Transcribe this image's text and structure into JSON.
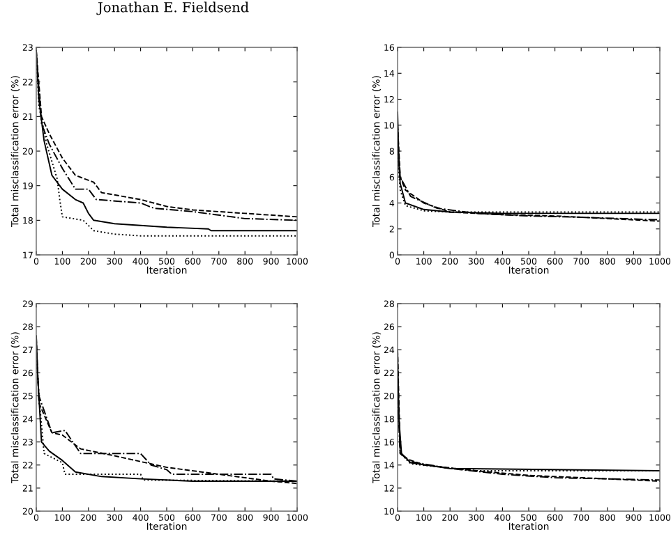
{
  "chart_data": [
    {
      "type": "line",
      "annotations": [
        "Jonathan E. Fieldsend"
      ],
      "xlabel": "Iteration",
      "ylabel": "Total misclassification error (%)",
      "xlim": [
        0,
        1000
      ],
      "xticks": [
        0,
        100,
        200,
        300,
        400,
        500,
        600,
        700,
        800,
        900,
        1000
      ],
      "ylim": [
        17,
        23
      ],
      "yticks": [
        17,
        18,
        19,
        20,
        21,
        22,
        23
      ],
      "series": [
        {
          "color": "#000000",
          "line_style": "solid",
          "x": [
            0,
            10,
            30,
            60,
            100,
            150,
            180,
            200,
            220,
            300,
            400,
            500,
            660,
            670,
            1000
          ],
          "values": [
            22.9,
            21.5,
            20.3,
            19.3,
            18.9,
            18.6,
            18.5,
            18.2,
            18.0,
            17.9,
            17.85,
            17.8,
            17.75,
            17.7,
            17.7
          ]
        },
        {
          "color": "#000000",
          "line_style": "dotted",
          "x": [
            0,
            10,
            40,
            80,
            90,
            100,
            180,
            220,
            300,
            400,
            1000
          ],
          "values": [
            22.8,
            21.3,
            20.2,
            19.2,
            18.6,
            18.1,
            18.0,
            17.7,
            17.6,
            17.55,
            17.55
          ]
        },
        {
          "color": "#000000",
          "line_style": "dashed",
          "x": [
            0,
            20,
            50,
            100,
            150,
            220,
            250,
            400,
            500,
            600,
            800,
            1000
          ],
          "values": [
            22.9,
            21.0,
            20.5,
            19.8,
            19.3,
            19.1,
            18.8,
            18.6,
            18.4,
            18.3,
            18.2,
            18.1
          ]
        },
        {
          "color": "#000000",
          "line_style": "dashdot",
          "x": [
            0,
            20,
            50,
            100,
            150,
            200,
            230,
            400,
            450,
            600,
            800,
            1000
          ],
          "values": [
            22.8,
            20.8,
            20.2,
            19.5,
            18.9,
            18.9,
            18.6,
            18.5,
            18.35,
            18.25,
            18.05,
            18.0
          ]
        }
      ]
    },
    {
      "type": "line",
      "xlabel": "Iteration",
      "ylabel": "Total misclassification error (%)",
      "xlim": [
        0,
        1000
      ],
      "xticks": [
        0,
        100,
        200,
        300,
        400,
        500,
        600,
        700,
        800,
        900,
        1000
      ],
      "ylim": [
        0,
        16
      ],
      "yticks": [
        0,
        2,
        4,
        6,
        8,
        10,
        12,
        14,
        16
      ],
      "series": [
        {
          "color": "#000000",
          "line_style": "solid",
          "x": [
            0,
            5,
            10,
            30,
            100,
            200,
            400,
            1000
          ],
          "values": [
            11,
            7,
            5.5,
            4.0,
            3.5,
            3.3,
            3.2,
            3.2
          ]
        },
        {
          "color": "#000000",
          "line_style": "dotted",
          "x": [
            0,
            5,
            10,
            30,
            100,
            200,
            400,
            1000
          ],
          "values": [
            10,
            6.5,
            5,
            3.8,
            3.4,
            3.3,
            3.3,
            3.3
          ]
        },
        {
          "color": "#000000",
          "line_style": "dashed",
          "x": [
            0,
            10,
            30,
            100,
            200,
            400,
            600,
            800,
            1000
          ],
          "values": [
            10,
            6,
            5,
            4,
            3.3,
            3.1,
            3.0,
            2.8,
            2.6
          ]
        },
        {
          "color": "#000000",
          "line_style": "dashdot",
          "x": [
            0,
            10,
            50,
            150,
            300,
            500,
            700,
            1000
          ],
          "values": [
            9,
            6,
            4.5,
            3.6,
            3.2,
            3.0,
            2.9,
            2.7
          ]
        }
      ]
    },
    {
      "type": "line",
      "xlabel": "Iteration",
      "ylabel": "Total misclassification error (%)",
      "xlim": [
        0,
        1000
      ],
      "xticks": [
        0,
        100,
        200,
        300,
        400,
        500,
        600,
        700,
        800,
        900,
        1000
      ],
      "ylim": [
        20,
        29
      ],
      "yticks": [
        20,
        21,
        22,
        23,
        24,
        25,
        26,
        27,
        28,
        29
      ],
      "series": [
        {
          "color": "#000000",
          "line_style": "solid",
          "x": [
            0,
            5,
            20,
            50,
            100,
            150,
            250,
            400,
            600,
            1000
          ],
          "values": [
            27.6,
            26,
            23.0,
            22.6,
            22.2,
            21.7,
            21.5,
            21.4,
            21.3,
            21.3
          ]
        },
        {
          "color": "#000000",
          "line_style": "dotted",
          "x": [
            0,
            10,
            30,
            100,
            110,
            400,
            410,
            1000
          ],
          "values": [
            27,
            25,
            22.5,
            22.1,
            21.6,
            21.6,
            21.35,
            21.3
          ]
        },
        {
          "color": "#000000",
          "line_style": "dashed",
          "x": [
            0,
            10,
            60,
            100,
            170,
            300,
            500,
            700,
            900,
            1000
          ],
          "values": [
            27.5,
            24.7,
            23.4,
            23.3,
            22.7,
            22.4,
            21.9,
            21.6,
            21.3,
            21.2
          ]
        },
        {
          "color": "#000000",
          "line_style": "dashdot",
          "x": [
            0,
            10,
            60,
            110,
            170,
            300,
            400,
            440,
            500,
            520,
            900,
            910,
            1000
          ],
          "values": [
            27,
            25,
            23.4,
            23.5,
            22.5,
            22.5,
            22.5,
            22.0,
            21.8,
            21.6,
            21.6,
            21.4,
            21.3
          ]
        }
      ]
    },
    {
      "type": "line",
      "xlabel": "Iteration",
      "ylabel": "Total misclassification error (%)",
      "xlim": [
        0,
        1000
      ],
      "xticks": [
        0,
        100,
        200,
        300,
        400,
        500,
        600,
        700,
        800,
        900,
        1000
      ],
      "ylim": [
        10,
        28
      ],
      "yticks": [
        10,
        12,
        14,
        16,
        18,
        20,
        22,
        24,
        26,
        28
      ],
      "series": [
        {
          "color": "#000000",
          "line_style": "solid",
          "x": [
            0,
            5,
            15,
            50,
            200,
            1000
          ],
          "values": [
            24,
            18,
            15,
            14.2,
            13.7,
            13.5
          ]
        },
        {
          "color": "#000000",
          "line_style": "dotted",
          "x": [
            0,
            10,
            50,
            300,
            1000
          ],
          "values": [
            22,
            15,
            14.1,
            13.5,
            13.5
          ]
        },
        {
          "color": "#000000",
          "line_style": "dashed",
          "x": [
            0,
            10,
            40,
            100,
            300,
            500,
            700,
            1000
          ],
          "values": [
            24,
            15,
            14.5,
            14.0,
            13.5,
            13.1,
            12.9,
            12.6
          ]
        },
        {
          "color": "#000000",
          "line_style": "dashdot",
          "x": [
            0,
            10,
            50,
            200,
            400,
            600,
            1000
          ],
          "values": [
            20,
            15,
            14.3,
            13.7,
            13.2,
            12.9,
            12.7
          ]
        }
      ]
    }
  ]
}
